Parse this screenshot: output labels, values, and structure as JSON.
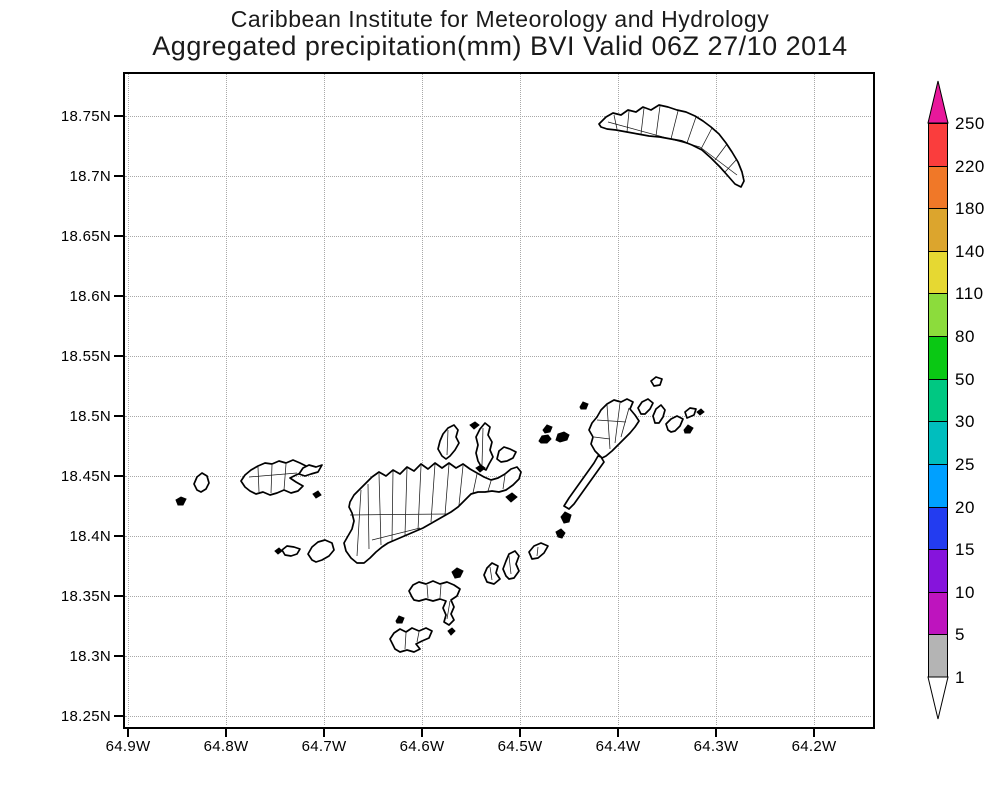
{
  "titles": {
    "line1": "Caribbean Institute for Meteorology and Hydrology",
    "line2": "Aggregated precipitation(mm) BVI Valid 06Z 27/10 2014"
  },
  "axes": {
    "lat_labels": [
      "18.75N",
      "18.7N",
      "18.65N",
      "18.6N",
      "18.55N",
      "18.5N",
      "18.45N",
      "18.4N",
      "18.35N",
      "18.3N",
      "18.25N"
    ],
    "lon_labels": [
      "64.9W",
      "64.8W",
      "64.7W",
      "64.6W",
      "64.5W",
      "64.4W",
      "64.3W",
      "64.2W"
    ]
  },
  "colorbar": {
    "boundary_labels": [
      "250",
      "220",
      "180",
      "140",
      "110",
      "80",
      "50",
      "30",
      "25",
      "20",
      "15",
      "10",
      "5",
      "1"
    ],
    "boundary_values": [
      250,
      220,
      180,
      140,
      110,
      80,
      50,
      30,
      25,
      20,
      15,
      10,
      5,
      1
    ],
    "segment_colors_top_to_bottom": [
      "#FA3D3D",
      "#F07828",
      "#DCA52D",
      "#E6D832",
      "#8CDC3C",
      "#0AC814",
      "#00C882",
      "#00BEBE",
      "#00A0FF",
      "#233CF0",
      "#8614DC",
      "#BE14BE",
      "#B4B4B4"
    ],
    "above_max_arrow_color": "#E8189B",
    "below_min_arrow_color": "#FFFFFF",
    "grid_color": "#a8a8a8"
  }
}
